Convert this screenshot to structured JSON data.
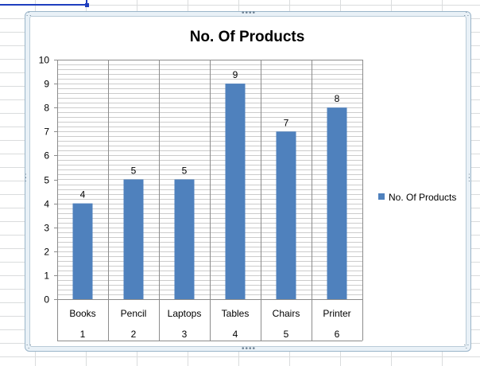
{
  "chart_data": {
    "type": "bar",
    "title": "No. Of Products",
    "categories": [
      "Books",
      "Pencil",
      "Laptops",
      "Tables",
      "Chairs",
      "Printer"
    ],
    "category_numbers": [
      "1",
      "2",
      "3",
      "4",
      "5",
      "6"
    ],
    "series": [
      {
        "name": "No. Of Products",
        "values": [
          4,
          5,
          5,
          9,
          7,
          8
        ]
      }
    ],
    "ylim": [
      0,
      10
    ],
    "y_ticks": [
      0,
      1,
      2,
      3,
      4,
      5,
      6,
      7,
      8,
      9,
      10
    ],
    "grid": true,
    "legend": "right",
    "data_labels": true,
    "bar_color": "#4f81bd"
  }
}
